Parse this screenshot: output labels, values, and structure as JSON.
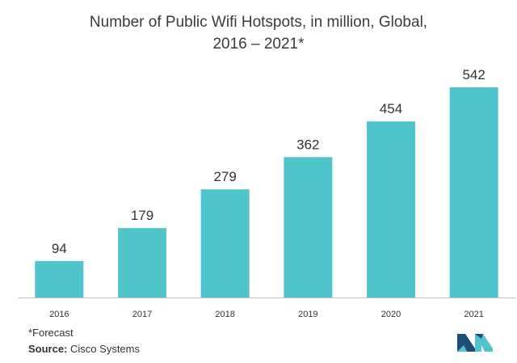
{
  "title_line1": "Number of Public Wifi Hotspots, in million, Global,",
  "title_line2": "2016 – 2021*",
  "footnote": "*Forecast",
  "source_label": "Source:",
  "source_value": "Cisco Systems",
  "colors": {
    "bar": "#4fc4cb",
    "axis": "#bfbfbf",
    "logo_dark": "#1d4e73",
    "logo_light": "#4fc4cb"
  },
  "chart_data": {
    "type": "bar",
    "title": "Number of Public Wifi Hotspots, in million, Global, 2016 – 2021*",
    "categories": [
      "2016",
      "2017",
      "2018",
      "2019",
      "2020",
      "2021"
    ],
    "values": [
      94,
      179,
      279,
      362,
      454,
      542
    ],
    "xlabel": "",
    "ylabel": "",
    "ylim": [
      0,
      542
    ],
    "grid": false,
    "legend": "none"
  }
}
